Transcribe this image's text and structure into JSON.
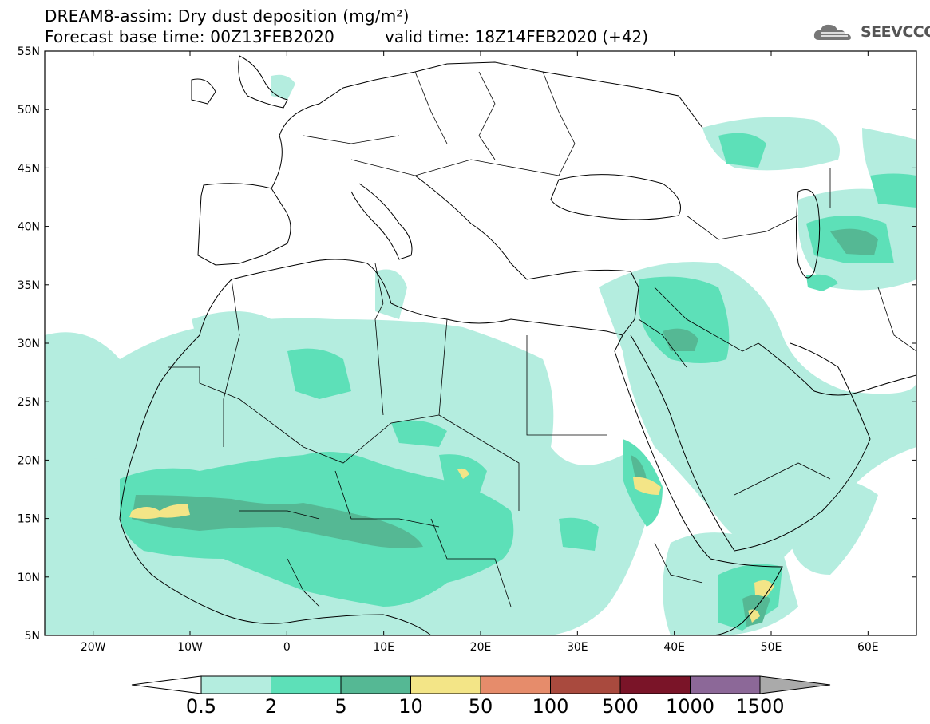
{
  "title": {
    "line1": "DREAM8-assim: Dry dust deposition (mg/m²)",
    "line2": "Forecast base time: 00Z13FEB2020",
    "valid": "valid time: 18Z14FEB2020 (+42)"
  },
  "logo": {
    "text": "SEEVCCC",
    "icon": "cloud-icon"
  },
  "map": {
    "lat_labels": [
      "55N",
      "50N",
      "45N",
      "40N",
      "35N",
      "30N",
      "25N",
      "20N",
      "15N",
      "10N",
      "5N"
    ],
    "lon_labels": [
      "20W",
      "10W",
      "0",
      "10E",
      "20E",
      "30E",
      "40E",
      "50E",
      "60E"
    ],
    "lat_range": [
      5,
      55
    ],
    "lon_range": [
      -25,
      65
    ]
  },
  "colorbar": {
    "labels": [
      "0.5",
      "2",
      "5",
      "10",
      "50",
      "100",
      "500",
      "1000",
      "1500"
    ],
    "colors": [
      "#b4eddf",
      "#5de0b8",
      "#55b894",
      "#f3e587",
      "#e68c6b",
      "#a94a3e",
      "#7a1428",
      "#8c6898",
      "#aaaaaa"
    ]
  },
  "colors": {
    "land_line": "#000000",
    "frame": "#000000"
  }
}
